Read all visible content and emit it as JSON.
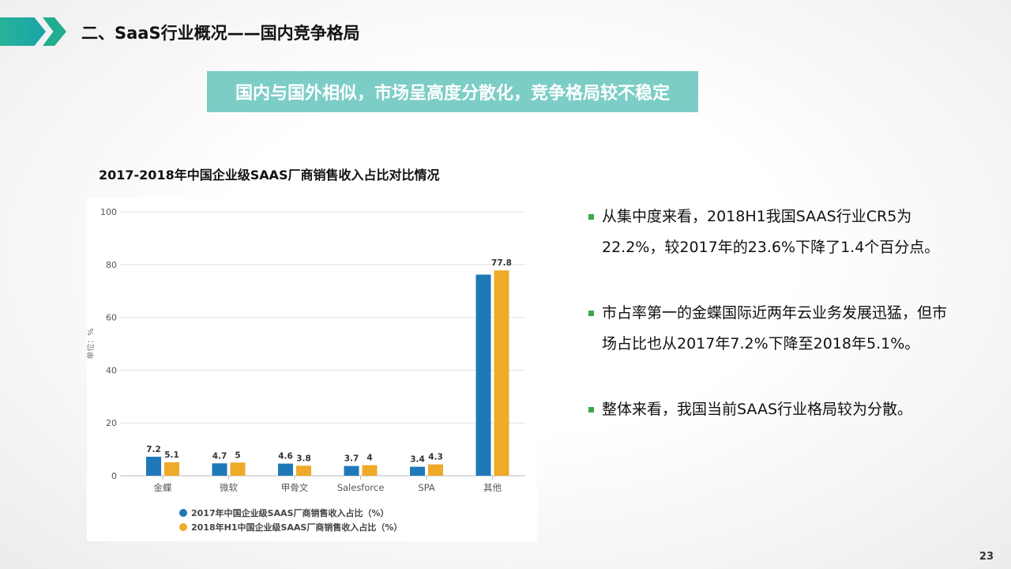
{
  "header": {
    "title": "二、SaaS行业概况——国内竞争格局"
  },
  "banner": "国内与国外相似，市场呈高度分散化，竞争格局较不稳定",
  "chart_title": "2017-2018年中国企业级SAAS厂商销售收入占比对比情况",
  "chart_data": {
    "type": "bar",
    "categories": [
      "金蝶",
      "微软",
      "甲骨文",
      "Salesforce",
      "SPA",
      "其他"
    ],
    "series": [
      {
        "name": "2017年中国企业级SAAS厂商销售收入占比（%）",
        "values": [
          7.2,
          4.7,
          4.6,
          3.7,
          3.4,
          76.2
        ],
        "labels": [
          "7.2",
          "4.7",
          "4.6",
          "3.7",
          "3.4",
          ""
        ],
        "color": "#1f78b8"
      },
      {
        "name": "2018年H1中国企业级SAAS厂商销售收入占比（%）",
        "values": [
          5.1,
          5,
          3.8,
          4,
          4.3,
          77.8
        ],
        "labels": [
          "5.1",
          "5",
          "3.8",
          "4",
          "4.3",
          "77.8"
        ],
        "color": "#eeaa28"
      }
    ],
    "ylabel": "单位：%",
    "ylim": [
      0,
      100
    ],
    "yticks": [
      "0",
      "20",
      "40",
      "60",
      "80",
      "100"
    ],
    "grid": true,
    "legend": "bottom"
  },
  "bullets": [
    "从集中度来看，2018H1我国SAAS行业CR5为22.2%，较2017年的23.6%下降了1.4个百分点。",
    "市占率第一的金蝶国际近两年云业务发展迅猛，但市场占比也从2017年7.2%下降至2018年5.1%。",
    "整体来看，我国当前SAAS行业格局较为分散。"
  ],
  "page_number": "23",
  "colors": {
    "accent": "#22ad8e",
    "banner": "#7ccdc6",
    "bullet": "#3aa84a"
  }
}
